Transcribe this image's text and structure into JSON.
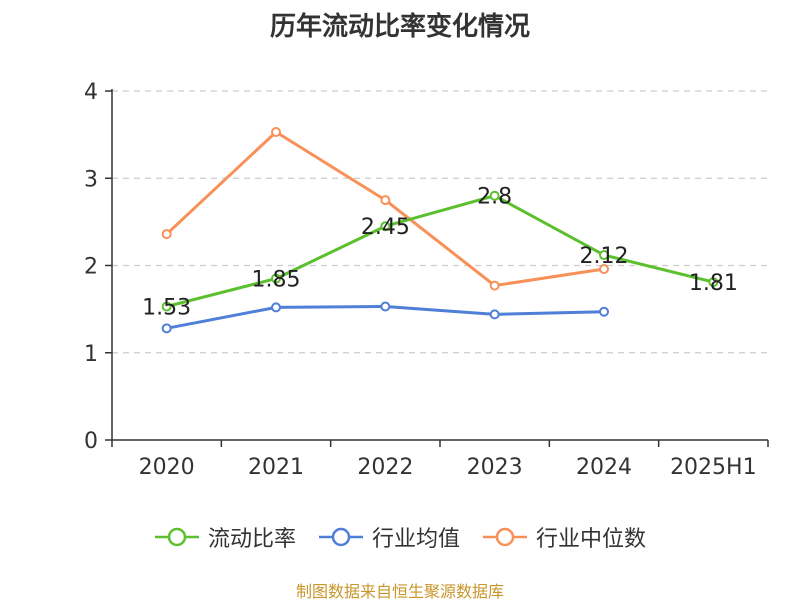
{
  "title": "历年流动比率变化情况",
  "source": "制图数据来自恒生聚源数据库",
  "source_color": "#c8962a",
  "chart_data": {
    "type": "line",
    "title": "历年流动比率变化情况",
    "xlabel": "",
    "ylabel": "",
    "categories": [
      "2020",
      "2021",
      "2022",
      "2023",
      "2024",
      "2025H1"
    ],
    "ylim": [
      0,
      4
    ],
    "yticks": [
      0,
      1,
      2,
      3,
      4
    ],
    "grid": true,
    "legend_position": "bottom",
    "series": [
      {
        "name": "流动比率",
        "color": "#5cc02e",
        "values": [
          1.53,
          1.85,
          2.45,
          2.8,
          2.12,
          1.81
        ],
        "labels": [
          "1.53",
          "1.85",
          "2.45",
          "2.8",
          "2.12",
          "1.81"
        ]
      },
      {
        "name": "行业均值",
        "color": "#4f7fd6",
        "values": [
          1.28,
          1.52,
          1.53,
          1.44,
          1.47,
          null
        ]
      },
      {
        "name": "行业中位数",
        "color": "#f89058",
        "values": [
          2.36,
          3.53,
          2.75,
          1.77,
          1.96,
          null
        ]
      }
    ]
  }
}
